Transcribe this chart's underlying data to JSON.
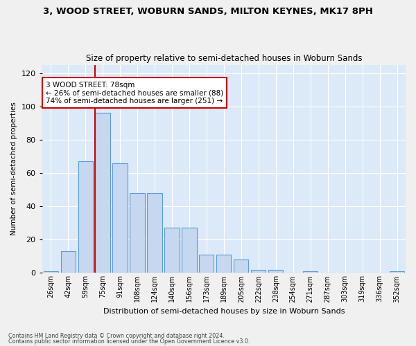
{
  "title1": "3, WOOD STREET, WOBURN SANDS, MILTON KEYNES, MK17 8PH",
  "title2": "Size of property relative to semi-detached houses in Woburn Sands",
  "xlabel": "Distribution of semi-detached houses by size in Woburn Sands",
  "ylabel": "Number of semi-detached properties",
  "categories": [
    "26sqm",
    "42sqm",
    "59sqm",
    "75sqm",
    "91sqm",
    "108sqm",
    "124sqm",
    "140sqm",
    "156sqm",
    "173sqm",
    "189sqm",
    "205sqm",
    "222sqm",
    "238sqm",
    "254sqm",
    "271sqm",
    "287sqm",
    "303sqm",
    "319sqm",
    "336sqm",
    "352sqm"
  ],
  "values": [
    1,
    13,
    67,
    96,
    66,
    48,
    48,
    27,
    27,
    11,
    11,
    8,
    2,
    2,
    0,
    1,
    0,
    0,
    0,
    0,
    1
  ],
  "bar_color": "#c5d8f0",
  "bar_edge_color": "#5b9bd5",
  "highlight_bar_index": 3,
  "highlight_line_color": "#cc0000",
  "property_label": "3 WOOD STREET: 78sqm",
  "pct_smaller": 26,
  "pct_larger": 74,
  "n_smaller": 88,
  "n_larger": 251,
  "annotation_box_color": "#ffffff",
  "annotation_box_edge": "#cc0000",
  "ylim": [
    0,
    125
  ],
  "yticks": [
    0,
    20,
    40,
    60,
    80,
    100,
    120
  ],
  "footnote1": "Contains HM Land Registry data © Crown copyright and database right 2024.",
  "footnote2": "Contains public sector information licensed under the Open Government Licence v3.0.",
  "bg_color": "#dce9f8",
  "fig_bg_color": "#f0f0f0"
}
